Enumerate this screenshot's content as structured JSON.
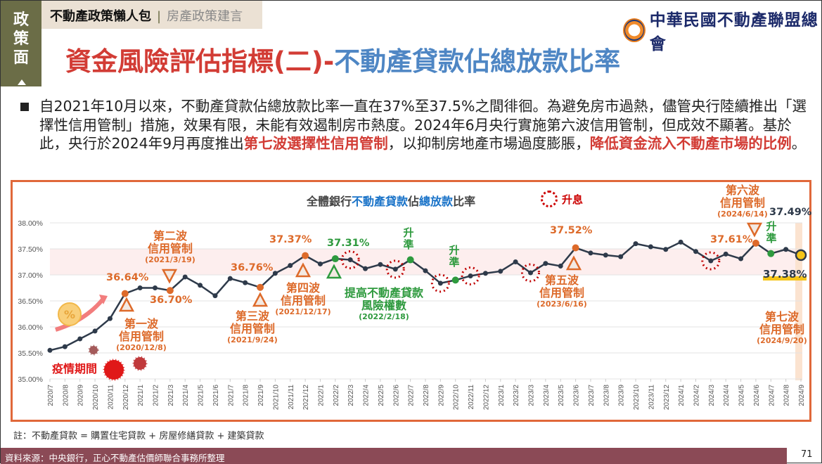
{
  "sidebar_tag": "政策面",
  "breadcrumb": {
    "main": "不動產政策懶人包",
    "sub": "房產政策建言"
  },
  "title": {
    "part1": "資金風險評估指標(二)-",
    "part2": "不動產貸款佔總放款比率"
  },
  "logo_text": "中華民國不動產聯盟總會",
  "paragraph": {
    "text1": "自2021年10月以來，不動產貸款佔總放款比率一直在37%至37.5%之間徘徊。為避免房市過熱，儘管央行陸續推出「選擇性信用管制」措施，效果有限，未能有效遏制房市熱度。2024年6月央行實施第六波信用管制，但成效不顯著。基於此，央行於2024年9月再度推出",
    "highlight1": "第七波選擇性信用管制",
    "text2": "，以抑制房地產市場過度膨脹，",
    "highlight2": "降低資金流入不動產市場的比例",
    "text3": "。"
  },
  "chart_data": {
    "type": "line",
    "title_parts": [
      "全體銀行",
      "不動產貸款",
      "佔",
      "總放款",
      "比率"
    ],
    "legend": "升息",
    "ylim": [
      35.0,
      38.0
    ],
    "yticks": [
      "35.00%",
      "35.50%",
      "36.00%",
      "36.50%",
      "37.00%",
      "37.50%",
      "38.00%"
    ],
    "ytick_values": [
      35.0,
      35.5,
      36.0,
      36.5,
      37.0,
      37.5,
      38.0
    ],
    "highlight_band": [
      37.0,
      37.5
    ],
    "categories": [
      "2020/7",
      "2020/8",
      "2020/9",
      "2020/10",
      "2020/11",
      "2020/12",
      "2021/1",
      "2021/2",
      "2021/3",
      "2021/4",
      "2021/5",
      "2021/6",
      "2021/7",
      "2021/8",
      "2021/9",
      "2021/10",
      "2021/11",
      "2021/12",
      "2022/1",
      "2022/2",
      "2022/3",
      "2022/4",
      "2022/5",
      "2022/6",
      "2022/7",
      "2022/8",
      "2022/9",
      "2022/10",
      "2022/11",
      "2022/12",
      "2023/1",
      "2023/2",
      "2023/3",
      "2023/4",
      "2023/5",
      "2023/6",
      "2023/7",
      "2023/8",
      "2023/9",
      "2023/10",
      "2023/11",
      "2023/12",
      "2024/1",
      "2024/2",
      "2024/3",
      "2024/4",
      "2024/5",
      "2024/6",
      "2024/7",
      "2024/8",
      "2024/9"
    ],
    "values": [
      35.55,
      35.62,
      35.77,
      35.92,
      36.16,
      36.64,
      36.75,
      36.75,
      36.7,
      36.96,
      36.8,
      36.6,
      36.93,
      36.85,
      36.76,
      37.03,
      37.18,
      37.37,
      37.21,
      37.31,
      37.29,
      37.12,
      37.2,
      37.11,
      37.29,
      37.08,
      36.84,
      36.9,
      36.98,
      37.03,
      37.07,
      37.25,
      37.04,
      37.22,
      37.17,
      37.52,
      37.42,
      37.38,
      37.35,
      37.6,
      37.54,
      37.49,
      37.63,
      37.45,
      37.27,
      37.4,
      37.31,
      37.61,
      37.41,
      37.49,
      37.38
    ],
    "rate_hikes": [
      "2022/3",
      "2022/6",
      "2022/9",
      "2022/11",
      "2023/3",
      "2024/3"
    ],
    "orange_points": [
      "2020/12",
      "2021/3",
      "2021/9",
      "2021/12",
      "2023/6",
      "2024/6"
    ],
    "green_points": [
      "2022/2",
      "2022/7",
      "2022/10",
      "2024/7"
    ],
    "annotations": {
      "v1": "36.64%",
      "v2": "36.70%",
      "v3": "36.76%",
      "v4": "37.37%",
      "v5": "37.31%",
      "v6": "37.52%",
      "v7": "37.61%",
      "v8": "37.49%",
      "v9": "37.38%",
      "wave1": {
        "title": "第一波",
        "sub": "信用管制",
        "date": "(2020/12/8)"
      },
      "wave2": {
        "title": "第二波",
        "sub": "信用管制",
        "date": "(2021/3/19)"
      },
      "wave3": {
        "title": "第三波",
        "sub": "信用管制",
        "date": "(2021/9/24)"
      },
      "wave4": {
        "title": "第四波",
        "sub": "信用管制",
        "date": "(2021/12/17)"
      },
      "risk": {
        "title": "提高不動產貸款",
        "sub": "風險權數",
        "date": "(2022/2/18)"
      },
      "wave5": {
        "title": "第五波",
        "sub": "信用管制",
        "date": "(2023/6/16)"
      },
      "wave6": {
        "title": "第六波",
        "sub": "信用管制",
        "date": "(2024/6/14)"
      },
      "wave7": {
        "title": "第七波",
        "sub": "信用管制",
        "date": "(2024/9/20)"
      },
      "reserve": "升準",
      "reserve_chars": [
        "升",
        "準"
      ],
      "epidemic": "疫情期間"
    }
  },
  "note": "註：不動產貸款 = 購置住宅貸款 + 房屋修繕貸款 + 建築貸款",
  "footer": "資料來源：中央銀行，正心不動產估價師聯合事務所整理",
  "page_number": "71",
  "colors": {
    "line": "#2e3a4a",
    "orange": "#dd6a2a",
    "green": "#2e9a3e",
    "band": "#fdeeee",
    "hike": "#c00000",
    "yellow": "#f5c518"
  }
}
